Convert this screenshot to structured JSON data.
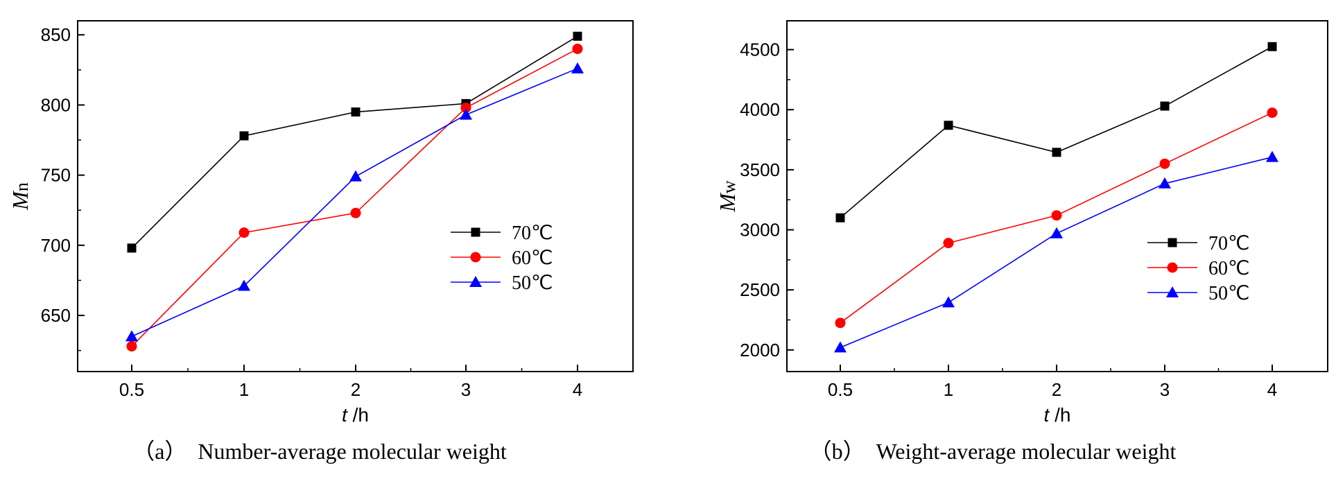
{
  "chart_data": [
    {
      "type": "line",
      "caption": "（a）　Number-average molecular weight",
      "xlabel_var": "t",
      "xlabel_unit": " /h",
      "ylabel_var": "M",
      "ylabel_sub": "n",
      "categories": [
        "0.5",
        "1",
        "2",
        "3",
        "4"
      ],
      "ylim": [
        610,
        860
      ],
      "yticks": [
        650,
        700,
        750,
        800,
        850
      ],
      "grid": false,
      "legend_position": "center-right",
      "series": [
        {
          "name": "70℃",
          "color": "#000000",
          "marker": "square",
          "values": [
            698,
            778,
            795,
            801,
            849
          ]
        },
        {
          "name": "60℃",
          "color": "#ff0000",
          "marker": "circle",
          "values": [
            628,
            709,
            723,
            798,
            840
          ]
        },
        {
          "name": "50℃",
          "color": "#0000ff",
          "marker": "triangle",
          "values": [
            635,
            671,
            749,
            793,
            826
          ]
        }
      ]
    },
    {
      "type": "line",
      "caption": "（b）　Weight-average molecular weight",
      "xlabel_var": "t",
      "xlabel_unit": " /h",
      "ylabel_var": "M",
      "ylabel_sub": "w",
      "categories": [
        "0.5",
        "1",
        "2",
        "3",
        "4"
      ],
      "ylim": [
        1820,
        4740
      ],
      "yticks": [
        2000,
        2500,
        3000,
        3500,
        4000,
        4500
      ],
      "grid": false,
      "legend_position": "center-right",
      "series": [
        {
          "name": "70℃",
          "color": "#000000",
          "marker": "square",
          "values": [
            3100,
            3870,
            3645,
            4030,
            4525
          ]
        },
        {
          "name": "60℃",
          "color": "#ff0000",
          "marker": "circle",
          "values": [
            2225,
            2890,
            3120,
            3550,
            3975
          ]
        },
        {
          "name": "50℃",
          "color": "#0000ff",
          "marker": "triangle",
          "values": [
            2020,
            2395,
            2970,
            3385,
            3605
          ]
        }
      ]
    }
  ]
}
